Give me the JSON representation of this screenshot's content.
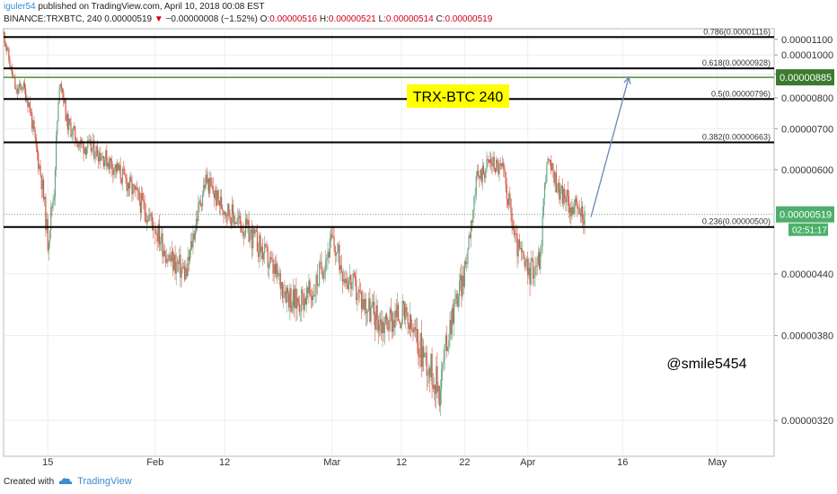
{
  "header": {
    "user": "iguler54",
    "published": " published on TradingView.com, April 10, 2018 00:08 EST",
    "symbol": "BINANCE:TRXBTC, 240",
    "last": "0.00000519",
    "change_arrow": "▼",
    "change": "−0.00000008 (−1.52%)",
    "o_label": "O:",
    "o_value": "0.00000516",
    "h_label": "H:",
    "h_value": "0.00000521",
    "l_label": "L:",
    "l_value": "0.00000514",
    "c_label": "C:",
    "c_value": "0.00000519"
  },
  "footer": {
    "created_with": "Created with",
    "brand": "TradingView",
    "brand_icon": "tradingview-cloud-icon"
  },
  "chart_data": {
    "type": "candlestick",
    "title": "TRX-BTC 240",
    "watermark": "@smile5454",
    "y_ticks": [
      "0.00001100",
      "0.00001000",
      "0.00000900",
      "0.00000800",
      "0.00000700",
      "0.00000600",
      "0.00000440",
      "0.00000380",
      "0.00000320"
    ],
    "y_tick_values": [
      1.1e-05,
      1e-05,
      9e-06,
      8e-06,
      7e-06,
      6e-06,
      4.4e-06,
      3.8e-06,
      3.2e-06
    ],
    "x_ticks": [
      "15",
      "Feb",
      "12",
      "Mar",
      "12",
      "22",
      "Apr",
      "16",
      "May"
    ],
    "x_tick_dates": [
      "2018-01-15",
      "2018-02-01",
      "2018-02-12",
      "2018-03-01",
      "2018-03-12",
      "2018-03-22",
      "2018-04-01",
      "2018-04-16",
      "2018-05-01"
    ],
    "x_range": [
      "2018-01-08",
      "2018-05-10"
    ],
    "y_range_top": 1.18e-05,
    "fib_levels": [
      {
        "label": "0.786(0.00001116)",
        "value": 1.116e-05
      },
      {
        "label": "0.618(0.00000928)",
        "value": 9.28e-06
      },
      {
        "label": "0.5(0.00000796)",
        "value": 7.96e-06
      },
      {
        "label": "0.382(0.00000663)",
        "value": 6.63e-06
      },
      {
        "label": "0.236(0.00000500)",
        "value": 5e-06
      }
    ],
    "target_line": {
      "value": 8.85e-06,
      "label": "0.00000885"
    },
    "last_price": {
      "value": 5.19e-06,
      "label": "0.00000519",
      "countdown": "02:51:17"
    },
    "projection_arrow": {
      "from": [
        "2018-04-11",
        5.15e-06
      ],
      "to": [
        "2018-04-17",
        8.86e-06
      ]
    },
    "price_path": [
      [
        "2018-01-08",
        1.14e-05
      ],
      [
        "2018-01-09",
        9.4e-06
      ],
      [
        "2018-01-10",
        8.2e-06
      ],
      [
        "2018-01-11",
        8.5e-06
      ],
      [
        "2018-01-12",
        7.8e-06
      ],
      [
        "2018-01-13",
        6.6e-06
      ],
      [
        "2018-01-14",
        5.8e-06
      ],
      [
        "2018-01-15",
        4.8e-06
      ],
      [
        "2018-01-16",
        5.6e-06
      ],
      [
        "2018-01-17",
        8.8e-06
      ],
      [
        "2018-01-18",
        7.2e-06
      ],
      [
        "2018-01-20",
        6.6e-06
      ],
      [
        "2018-01-23",
        6.4e-06
      ],
      [
        "2018-01-26",
        6e-06
      ],
      [
        "2018-01-29",
        5.5e-06
      ],
      [
        "2018-02-01",
        5e-06
      ],
      [
        "2018-02-03",
        4.6e-06
      ],
      [
        "2018-02-06",
        4.4e-06
      ],
      [
        "2018-02-09",
        5.8e-06
      ],
      [
        "2018-02-11",
        5.4e-06
      ],
      [
        "2018-02-14",
        5.1e-06
      ],
      [
        "2018-02-17",
        4.8e-06
      ],
      [
        "2018-02-20",
        4.4e-06
      ],
      [
        "2018-02-23",
        4.1e-06
      ],
      [
        "2018-02-26",
        4.2e-06
      ],
      [
        "2018-03-01",
        4.8e-06
      ],
      [
        "2018-03-03",
        4.4e-06
      ],
      [
        "2018-03-06",
        4.1e-06
      ],
      [
        "2018-03-09",
        3.9e-06
      ],
      [
        "2018-03-12",
        4e-06
      ],
      [
        "2018-03-15",
        3.7e-06
      ],
      [
        "2018-03-18",
        3.4e-06
      ],
      [
        "2018-03-20",
        4e-06
      ],
      [
        "2018-03-22",
        4.4e-06
      ],
      [
        "2018-03-24",
        5.8e-06
      ],
      [
        "2018-03-26",
        6.2e-06
      ],
      [
        "2018-03-28",
        6e-06
      ],
      [
        "2018-03-30",
        4.8e-06
      ],
      [
        "2018-04-01",
        4.4e-06
      ],
      [
        "2018-04-03",
        4.6e-06
      ],
      [
        "2018-04-04",
        6.2e-06
      ],
      [
        "2018-04-06",
        5.6e-06
      ],
      [
        "2018-04-08",
        5.3e-06
      ],
      [
        "2018-04-10",
        5.19e-06
      ]
    ]
  }
}
